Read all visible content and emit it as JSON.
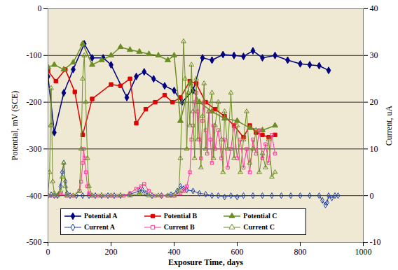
{
  "chart_data": {
    "type": "line",
    "xlabel": "Exposure Time, days",
    "ylabel": "Potential, mV (SCE)",
    "y2label": "Current, uA",
    "xlim": [
      0,
      1000
    ],
    "xticks": [
      0,
      200,
      400,
      600,
      800,
      1000
    ],
    "ylim": [
      -500,
      0
    ],
    "yticks": [
      -500,
      -400,
      -300,
      -200,
      -100,
      0
    ],
    "y2lim": [
      -10,
      40
    ],
    "y2ticks": [
      -10,
      0,
      10,
      20,
      30,
      40
    ],
    "grid": true,
    "legend": "bottom",
    "series": [
      {
        "name": "Potential A",
        "color": "#000080",
        "marker": "diamond",
        "line_style": "solid",
        "x": [
          0,
          20,
          50,
          80,
          115,
          140,
          175,
          200,
          250,
          280,
          305,
          335,
          370,
          400,
          425,
          460,
          490,
          520,
          555,
          590,
          620,
          650,
          680,
          720,
          760,
          800,
          830,
          860,
          890
        ],
        "values": [
          -145,
          -265,
          -180,
          -130,
          -75,
          -105,
          -105,
          -120,
          -190,
          -145,
          -135,
          -150,
          -165,
          -175,
          -200,
          -175,
          -105,
          -110,
          -98,
          -100,
          -102,
          -90,
          -105,
          -100,
          -110,
          -118,
          -120,
          -122,
          -132
        ]
      },
      {
        "name": "Potential B",
        "color": "#E00000",
        "marker": "square",
        "line_style": "solid",
        "x": [
          0,
          25,
          55,
          85,
          110,
          140,
          200,
          230,
          260,
          280,
          310,
          340,
          370,
          395,
          420,
          450,
          470,
          500,
          530,
          560,
          590,
          620,
          640,
          660,
          680,
          700,
          720
        ],
        "values": [
          -133,
          -155,
          -130,
          -178,
          -270,
          -193,
          -162,
          -165,
          -150,
          -245,
          -215,
          -200,
          -185,
          -200,
          -190,
          -155,
          -160,
          -200,
          -215,
          -230,
          -250,
          -275,
          -250,
          -265,
          -270,
          -275,
          -270
        ]
      },
      {
        "name": "Potential C",
        "color": "#6B8E23",
        "marker": "triangle",
        "line_style": "solid",
        "x": [
          0,
          20,
          50,
          80,
          110,
          140,
          170,
          200,
          230,
          260,
          290,
          320,
          350,
          380,
          400,
          420,
          450,
          480,
          520,
          560,
          600,
          640,
          680,
          720
        ],
        "values": [
          -125,
          -120,
          -130,
          -115,
          -75,
          -120,
          -110,
          -100,
          -82,
          -88,
          -92,
          -97,
          -100,
          -110,
          -100,
          -240,
          -160,
          -200,
          -220,
          -235,
          -240,
          -255,
          -260,
          -250
        ]
      },
      {
        "name": "Current A",
        "color": "#1F3F9F",
        "marker": "open-diamond",
        "line_style": "solid",
        "axis": "y2",
        "x": [
          0,
          10,
          20,
          30,
          40,
          45,
          50,
          55,
          60,
          70,
          90,
          110,
          130,
          150,
          170,
          190,
          210,
          230,
          260,
          290,
          300,
          310,
          330,
          360,
          390,
          410,
          420,
          430,
          440,
          460,
          480,
          500,
          520,
          540,
          560,
          580,
          600,
          620,
          650,
          680,
          710,
          740,
          770,
          800,
          830,
          860,
          870,
          880,
          885,
          890,
          900,
          910,
          920
        ],
        "values": [
          0,
          0.2,
          0,
          0,
          2,
          5,
          7,
          3,
          0.5,
          0,
          0,
          0,
          0,
          0,
          0,
          0,
          0,
          0,
          0.3,
          1,
          1.2,
          0.5,
          0,
          0,
          0.2,
          1,
          2,
          1.5,
          1.2,
          1,
          0.5,
          0.3,
          0,
          0,
          -0.3,
          0,
          -0.3,
          0,
          0,
          0,
          0,
          0,
          0,
          0,
          0,
          0,
          -1,
          -2,
          -1.5,
          0,
          -0.5,
          0,
          0
        ]
      },
      {
        "name": "Current B",
        "color": "#FF3399",
        "marker": "open-square",
        "line_style": "solid",
        "axis": "y2",
        "x": [
          0,
          20,
          40,
          60,
          80,
          100,
          105,
          110,
          113,
          116,
          120,
          125,
          130,
          140,
          160,
          180,
          200,
          220,
          240,
          260,
          280,
          295,
          305,
          320,
          340,
          360,
          380,
          400,
          420,
          430,
          440,
          450,
          455,
          460,
          465,
          470,
          475,
          480,
          485,
          490,
          495,
          500,
          505,
          510,
          515,
          520,
          525,
          530,
          540,
          550,
          560,
          570,
          580,
          590,
          600,
          610,
          620,
          630,
          640,
          650,
          660,
          670,
          680,
          690,
          700,
          710,
          720
        ],
        "values": [
          0,
          0,
          0.5,
          0,
          0,
          1,
          3,
          7,
          10,
          8,
          5,
          2,
          0.5,
          0,
          0,
          0,
          0,
          0,
          0,
          0.5,
          1.5,
          2,
          2.5,
          1,
          0,
          0,
          0,
          0,
          0.5,
          1,
          2,
          5,
          12,
          15,
          20,
          22,
          18,
          12,
          8,
          16,
          20,
          14,
          9,
          18,
          12,
          7,
          15,
          10,
          14,
          8,
          12,
          6,
          10,
          15,
          8,
          12,
          6,
          10,
          5,
          12,
          9,
          14,
          8,
          11,
          7,
          13,
          9
        ]
      },
      {
        "name": "Current C",
        "color": "#6B8E23",
        "marker": "open-triangle",
        "line_style": "solid",
        "axis": "y2",
        "x": [
          0,
          5,
          8,
          10,
          12,
          15,
          20,
          30,
          40,
          45,
          50,
          55,
          60,
          80,
          100,
          105,
          110,
          115,
          120,
          125,
          130,
          140,
          170,
          200,
          230,
          260,
          290,
          320,
          350,
          380,
          400,
          415,
          420,
          425,
          430,
          435,
          440,
          445,
          450,
          455,
          460,
          465,
          470,
          475,
          480,
          485,
          490,
          495,
          500,
          510,
          520,
          525,
          530,
          540,
          550,
          555,
          560,
          570,
          580,
          590,
          600,
          610,
          620,
          630,
          640,
          650,
          660,
          670,
          680,
          690,
          700,
          710,
          720
        ],
        "values": [
          0,
          5,
          15,
          23,
          15,
          3,
          0.5,
          0,
          1,
          4,
          7,
          2,
          0,
          0,
          1,
          10,
          25,
          30,
          20,
          8,
          2,
          0,
          0,
          0,
          0,
          0,
          0.5,
          0,
          0,
          0,
          0,
          1,
          8,
          20,
          33,
          25,
          10,
          22,
          15,
          28,
          18,
          8,
          25,
          12,
          20,
          6,
          17,
          24,
          10,
          18,
          22,
          8,
          15,
          20,
          12,
          5,
          18,
          10,
          22,
          8,
          15,
          5,
          12,
          18,
          7,
          10,
          14,
          5,
          9,
          6,
          12,
          4,
          5
        ]
      }
    ]
  }
}
